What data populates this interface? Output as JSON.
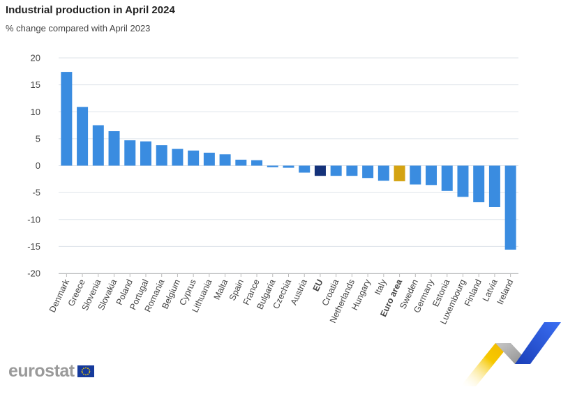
{
  "header": {
    "title": "Industrial production in April 2024",
    "subtitle": "% change compared with April 2023"
  },
  "logo": {
    "text": "eurostat"
  },
  "colors": {
    "bar": "#3a8ce0",
    "eu": "#14327a",
    "euro_area": "#d4a312",
    "grid": "#dde3ea",
    "axis": "#bbbbbb"
  },
  "chart_data": {
    "type": "bar",
    "title": "Industrial production in April 2024",
    "subtitle": "% change compared with April 2023",
    "xlabel": "",
    "ylabel": "",
    "ylim": [
      -20,
      20
    ],
    "yticks": [
      20,
      15,
      10,
      5,
      0,
      -5,
      -10,
      -15,
      -20
    ],
    "grid": true,
    "categories": [
      "Denmark",
      "Greece",
      "Slovenia",
      "Slovakia",
      "Poland",
      "Portugal",
      "Romania",
      "Belgium",
      "Cyprus",
      "Lithuania",
      "Malta",
      "Spain",
      "France",
      "Bulgaria",
      "Czechia",
      "Austria",
      "EU",
      "Croatia",
      "Netherlands",
      "Hungary",
      "Italy",
      "Euro area",
      "Sweden",
      "Germany",
      "Estonia",
      "Luxembourg",
      "Finland",
      "Latvia",
      "Ireland"
    ],
    "values": [
      17.4,
      10.9,
      7.5,
      6.4,
      4.7,
      4.5,
      3.8,
      3.1,
      2.8,
      2.4,
      2.1,
      1.1,
      1.0,
      -0.3,
      -0.4,
      -1.3,
      -1.9,
      -1.9,
      -1.9,
      -2.3,
      -2.8,
      -2.9,
      -3.5,
      -3.6,
      -4.7,
      -5.8,
      -6.8,
      -7.7,
      -15.6
    ],
    "highlight": {
      "EU": "eu",
      "Euro area": "euro_area"
    }
  }
}
